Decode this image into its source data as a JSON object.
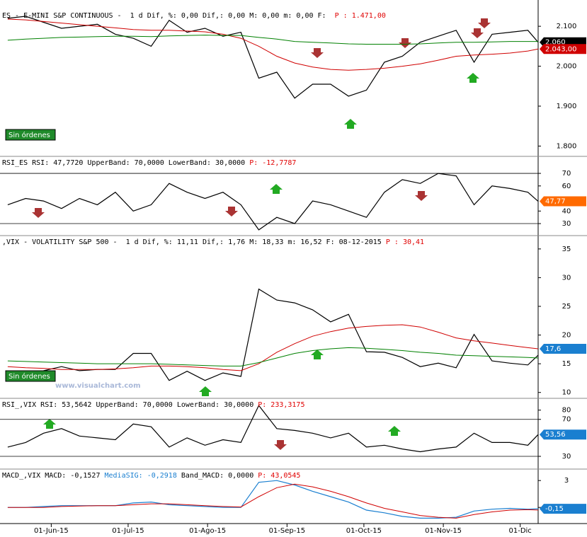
{
  "x": [
    "2015-05-15",
    "2015-05-22",
    "2015-05-29",
    "2015-06-05",
    "2015-06-12",
    "2015-06-19",
    "2015-06-26",
    "2015-07-03",
    "2015-07-10",
    "2015-07-17",
    "2015-07-24",
    "2015-07-31",
    "2015-08-07",
    "2015-08-14",
    "2015-08-21",
    "2015-08-28",
    "2015-09-04",
    "2015-09-11",
    "2015-09-18",
    "2015-09-25",
    "2015-10-02",
    "2015-10-09",
    "2015-10-16",
    "2015-10-23",
    "2015-10-30",
    "2015-11-06",
    "2015-11-13",
    "2015-11-20",
    "2015-11-27",
    "2015-12-04",
    "2015-12-08"
  ],
  "xlim": [
    "2015-05-12",
    "2015-12-08"
  ],
  "xticks": [
    {
      "value": "2015-06-01",
      "label": "01-Jun-15"
    },
    {
      "value": "2015-07-01",
      "label": "01-Jul-15"
    },
    {
      "value": "2015-08-01",
      "label": "01-Ago-15"
    },
    {
      "value": "2015-09-01",
      "label": "01-Sep-15"
    },
    {
      "value": "2015-10-01",
      "label": "01-Oct-15"
    },
    {
      "value": "2015-11-01",
      "label": "01-Nov-15"
    },
    {
      "value": "2015-12-01",
      "label": "01-Dic"
    }
  ],
  "panels": [
    {
      "header": [
        {
          "text": "ES - E-MINI S&P CONTINUOUS -  1 d Dif, %: 0,00 Dif,: 0,00 M: 0,00 m: 0,00 F: ",
          "color": "#000"
        },
        {
          "text": " P : 1.471,00",
          "color": "#e00000"
        }
      ],
      "ylim": [
        1776,
        2141
      ],
      "yticks": [
        {
          "value": 2100,
          "label": "2.100"
        },
        {
          "value": 2000,
          "label": "2.000"
        },
        {
          "value": 1900,
          "label": "1.900"
        },
        {
          "value": 1800,
          "label": "1.800"
        }
      ],
      "series": [
        {
          "color": "#000",
          "values": [
            2120,
            2125,
            2110,
            2095,
            2100,
            2105,
            2080,
            2070,
            2050,
            2115,
            2085,
            2095,
            2075,
            2085,
            1970,
            1985,
            1920,
            1955,
            1955,
            1925,
            1940,
            2010,
            2025,
            2060,
            2075,
            2090,
            2010,
            2080,
            2085,
            2090,
            2060
          ]
        },
        {
          "color": "#d00000",
          "values": [
            2118,
            2116,
            2112,
            2108,
            2104,
            2100,
            2096,
            2092,
            2090,
            2090,
            2088,
            2086,
            2080,
            2070,
            2050,
            2025,
            2008,
            1998,
            1992,
            1990,
            1992,
            1995,
            2000,
            2006,
            2015,
            2025,
            2028,
            2030,
            2033,
            2038,
            2043
          ]
        },
        {
          "color": "#008000",
          "values": [
            2065,
            2068,
            2070,
            2072,
            2073,
            2074,
            2075,
            2075,
            2074,
            2076,
            2077,
            2078,
            2077,
            2077,
            2072,
            2068,
            2062,
            2060,
            2058,
            2056,
            2055,
            2055,
            2055,
            2056,
            2058,
            2060,
            2060,
            2061,
            2062,
            2062,
            2062
          ]
        }
      ],
      "tags": [
        {
          "value": 2060,
          "label": "2.060",
          "color": "#000"
        },
        {
          "value": 2043,
          "label": "2.043,00",
          "color": "#d00000"
        }
      ],
      "orders": "Sin órdenes"
    },
    {
      "header": [
        {
          "text": "RSI_ES RSI: 47,7720 UpperBand: 70,0000 LowerBand: 30,0000 ",
          "color": "#000"
        },
        {
          "text": "P: -12,7787",
          "color": "#e00000"
        }
      ],
      "ylim": [
        21,
        83
      ],
      "yticks": [
        70,
        60,
        40,
        30
      ],
      "bands": [
        70,
        30
      ],
      "series": [
        {
          "color": "#000",
          "values": [
            45,
            50,
            48,
            42,
            50,
            45,
            55,
            40,
            45,
            62,
            55,
            50,
            55,
            45,
            25,
            35,
            30,
            48,
            45,
            40,
            35,
            55,
            65,
            62,
            70,
            68,
            45,
            60,
            58,
            55,
            47.77
          ]
        }
      ],
      "tags": [
        {
          "value": 47.77,
          "label": "47,77",
          "color": "#ff6a00"
        }
      ]
    },
    {
      "header": [
        {
          "text": ",VIX - VOLATILITY S&P 500 -  1 d Dif, %: 11,11 Dif,: 1,76 M: 18,33 m: 16,52 F: 08-12-2015 ",
          "color": "#000"
        },
        {
          "text": "P : 30,41",
          "color": "#e00000"
        }
      ],
      "ylim": [
        9.1,
        37.2
      ],
      "yticks": [
        35,
        30,
        25,
        20,
        15,
        10
      ],
      "series": [
        {
          "color": "#000",
          "values": [
            12.4,
            12.5,
            13.8,
            14.5,
            13.8,
            14.0,
            14.0,
            16.8,
            16.8,
            12.1,
            13.7,
            12.1,
            13.4,
            12.8,
            28.0,
            26.1,
            25.6,
            24.4,
            22.3,
            23.6,
            17.1,
            17.0,
            16.1,
            14.5,
            15.1,
            14.3,
            20.1,
            15.5,
            15.1,
            14.8,
            16.5
          ]
        },
        {
          "color": "#d00000",
          "values": [
            14.5,
            14.3,
            14.2,
            14.0,
            14.0,
            14.0,
            14.1,
            14.3,
            14.6,
            14.6,
            14.5,
            14.3,
            14.0,
            13.8,
            15.0,
            17.0,
            18.5,
            19.8,
            20.6,
            21.2,
            21.5,
            21.7,
            21.8,
            21.4,
            20.5,
            19.5,
            19.0,
            18.6,
            18.2,
            17.8,
            17.6
          ]
        },
        {
          "color": "#008000",
          "values": [
            15.5,
            15.4,
            15.3,
            15.2,
            15.1,
            15.0,
            15.0,
            15.0,
            15.0,
            14.9,
            14.8,
            14.7,
            14.6,
            14.6,
            15.2,
            16.0,
            16.8,
            17.3,
            17.6,
            17.8,
            17.7,
            17.5,
            17.3,
            17.0,
            16.8,
            16.5,
            16.4,
            16.3,
            16.2,
            16.1,
            16.0
          ]
        }
      ],
      "tags": [
        {
          "value": 17.6,
          "label": "17,6",
          "color": "#1a7fd0"
        }
      ],
      "orders": "Sin órdenes",
      "watermark": "www.visualchart.com"
    },
    {
      "header": [
        {
          "text": "RSI_,VIX RSI: 53,5642 UpperBand: 70,0000 LowerBand: 30,0000 ",
          "color": "#000"
        },
        {
          "text": "P: 233,3175",
          "color": "#e00000"
        }
      ],
      "ylim": [
        17,
        92
      ],
      "yticks": [
        80,
        70,
        30
      ],
      "bands": [
        70,
        30
      ],
      "series": [
        {
          "color": "#000",
          "values": [
            40,
            45,
            55,
            60,
            52,
            50,
            48,
            65,
            62,
            40,
            50,
            42,
            48,
            45,
            85,
            60,
            58,
            55,
            50,
            55,
            40,
            42,
            38,
            35,
            38,
            40,
            55,
            45,
            45,
            42,
            53.56
          ]
        }
      ],
      "tags": [
        {
          "value": 53.56,
          "label": "53,56",
          "color": "#1a7fd0"
        }
      ]
    },
    {
      "header": [
        {
          "text": "MACD_,VIX MACD: -0,1527 ",
          "color": "#000"
        },
        {
          "text": "MediaSIG: -0,2918",
          "color": "#1a7fd0"
        },
        {
          "text": " Band_MACD: 0,0000 ",
          "color": "#000"
        },
        {
          "text": "P: 43,0545",
          "color": "#e00000"
        }
      ],
      "ylim": [
        -1.8,
        4.2
      ],
      "yticks": [
        3,
        0
      ],
      "series": [
        {
          "color": "#1a7fd0",
          "values": [
            0,
            0,
            0.1,
            0.2,
            0.2,
            0.2,
            0.2,
            0.5,
            0.6,
            0.3,
            0.2,
            0.1,
            0,
            0,
            2.8,
            3.0,
            2.5,
            1.8,
            1.2,
            0.6,
            -0.3,
            -0.6,
            -1.0,
            -1.2,
            -1.2,
            -1.1,
            -0.4,
            -0.2,
            -0.1,
            -0.2,
            -0.15
          ]
        },
        {
          "color": "#d00000",
          "values": [
            0,
            0,
            0,
            0.1,
            0.15,
            0.2,
            0.2,
            0.3,
            0.4,
            0.4,
            0.3,
            0.2,
            0.1,
            0.05,
            1.2,
            2.2,
            2.6,
            2.3,
            1.8,
            1.2,
            0.5,
            -0.1,
            -0.5,
            -0.9,
            -1.1,
            -1.2,
            -0.8,
            -0.5,
            -0.3,
            -0.25,
            -0.29
          ]
        }
      ],
      "tags": [
        {
          "value": -0.15,
          "label": "-0,15",
          "color": "#1a7fd0"
        }
      ]
    }
  ]
}
